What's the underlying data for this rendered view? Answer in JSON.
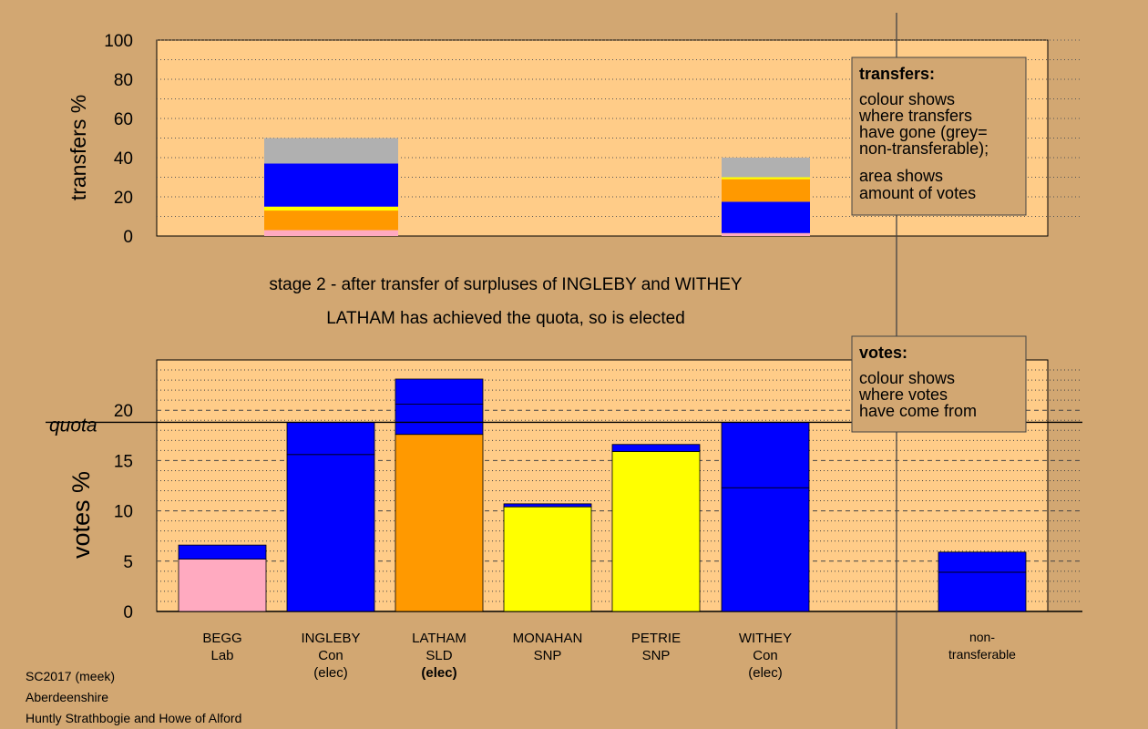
{
  "title": "stage 2 - after transfer of surpluses of INGLEBY and WITHEY",
  "subtitle": "LATHAM has achieved the quota, so is elected",
  "footer": [
    "SC2017 (meek)",
    "Aberdeenshire",
    "Huntly Strathbogie and Howe of Alford"
  ],
  "colors": {
    "background": "#d2a772",
    "plot": "#ffcc88",
    "Con": "#0000ff",
    "SLD": "#ff9900",
    "SNP": "#ffff00",
    "Lab": "#ffaac0",
    "non_transferable": "#b0b0b0"
  },
  "chart_data": [
    {
      "type": "bar",
      "stacked": true,
      "ylabel": "transfers %",
      "ylim": [
        0,
        100
      ],
      "yticks": [
        0,
        20,
        40,
        60,
        80,
        100
      ],
      "categories": [
        "BEGG",
        "INGLEBY",
        "LATHAM",
        "MONAHAN",
        "PETRIE",
        "WITHEY",
        "non-transferable"
      ],
      "bars": [
        {
          "category": "INGLEBY",
          "segments": [
            {
              "source": "Lab",
              "value": 3,
              "color": "#ffaac0"
            },
            {
              "source": "SLD",
              "value": 10,
              "color": "#ff9900"
            },
            {
              "source": "SNP",
              "value": 2,
              "color": "#ffff00"
            },
            {
              "source": "Con",
              "value": 22,
              "color": "#0000ff"
            },
            {
              "source": "non-transferable",
              "value": 13,
              "color": "#b0b0b0"
            }
          ]
        },
        {
          "category": "WITHEY",
          "segments": [
            {
              "source": "Lab",
              "value": 1.5,
              "color": "#ffaac0"
            },
            {
              "source": "Con",
              "value": 16,
              "color": "#0000ff"
            },
            {
              "source": "SLD",
              "value": 11.5,
              "color": "#ff9900"
            },
            {
              "source": "SNP",
              "value": 1,
              "color": "#ffff00"
            },
            {
              "source": "non-transferable",
              "value": 10,
              "color": "#b0b0b0"
            }
          ]
        }
      ],
      "legend": {
        "heading": "transfers:",
        "lines": [
          "colour shows",
          "where transfers",
          "have gone (grey=",
          "non-transferable);"
        ],
        "lines2": [
          "area shows",
          "amount of votes"
        ]
      }
    },
    {
      "type": "bar",
      "stacked": true,
      "ylabel": "votes %",
      "ylim": [
        0,
        25
      ],
      "yticks": [
        0,
        5,
        10,
        15,
        20
      ],
      "quota": 18.8,
      "quota_label": "quota",
      "candidates": [
        {
          "name": "BEGG",
          "party": "Lab",
          "status": "",
          "segments": [
            {
              "value": 5.2,
              "color": "#ffaac0"
            },
            {
              "value": 1.4,
              "color": "#0000ff"
            }
          ]
        },
        {
          "name": "INGLEBY",
          "party": "Con",
          "status": "(elec)",
          "segments": [
            {
              "value": 15.6,
              "color": "#0000ff"
            },
            {
              "value": 3.2,
              "color": "#0000ff"
            }
          ]
        },
        {
          "name": "LATHAM",
          "party": "SLD",
          "status": "(elec)",
          "bold_status": true,
          "segments": [
            {
              "value": 17.6,
              "color": "#ff9900"
            },
            {
              "value": 3.0,
              "color": "#0000ff"
            },
            {
              "value": 2.5,
              "color": "#0000ff"
            }
          ]
        },
        {
          "name": "MONAHAN",
          "party": "SNP",
          "status": "",
          "segments": [
            {
              "value": 10.4,
              "color": "#ffff00"
            },
            {
              "value": 0.3,
              "color": "#0000ff"
            }
          ]
        },
        {
          "name": "PETRIE",
          "party": "SNP",
          "status": "",
          "segments": [
            {
              "value": 15.9,
              "color": "#ffff00"
            },
            {
              "value": 0.7,
              "color": "#0000ff"
            }
          ]
        },
        {
          "name": "WITHEY",
          "party": "Con",
          "status": "(elec)",
          "segments": [
            {
              "value": 12.3,
              "color": "#0000ff"
            },
            {
              "value": 6.5,
              "color": "#0000ff"
            }
          ]
        }
      ],
      "non_transferable": {
        "label_lines": [
          "non-",
          "transferable"
        ],
        "segments": [
          {
            "value": 3.9,
            "color": "#0000ff"
          },
          {
            "value": 2.0,
            "color": "#0000ff"
          }
        ]
      },
      "legend": {
        "heading": "votes:",
        "lines": [
          "colour shows",
          "where votes",
          "have come from"
        ]
      }
    }
  ]
}
